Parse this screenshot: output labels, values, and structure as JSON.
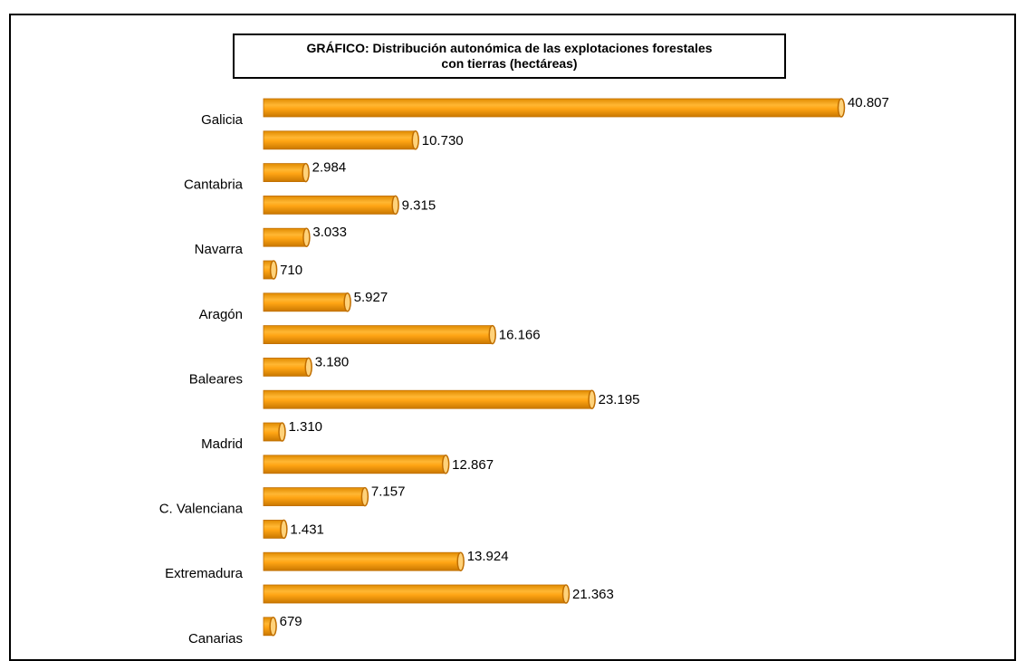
{
  "chart_data": {
    "type": "bar",
    "orientation": "horizontal",
    "title_line1": "GRÁFICO: Distribución autonómica de las explotaciones forestales",
    "title_line2": "con tierras (hectáreas)",
    "categories": [
      "Galicia",
      "",
      "Cantabria",
      "",
      "Navarra",
      "",
      "Aragón",
      "",
      "Baleares",
      "",
      "Madrid",
      "",
      "C. Valenciana",
      "",
      "Extremadura",
      "",
      "Canarias"
    ],
    "values": [
      40807,
      10730,
      2984,
      9315,
      3033,
      710,
      5927,
      16166,
      3180,
      23195,
      1310,
      12867,
      7157,
      1431,
      13924,
      21363,
      679
    ],
    "value_labels": [
      "40.807",
      "10.730",
      "2.984",
      "9.315",
      "3.033",
      "710",
      "5.927",
      "16.166",
      "3.180",
      "23.195",
      "1.310",
      "12.867",
      "7.157",
      "1.431",
      "13.924",
      "21.363",
      "679"
    ],
    "xlim": [
      0,
      41000
    ],
    "grid": false,
    "bar_color": "#F29A00",
    "bar_edge_color": "#C06E00",
    "bar_highlight_color": "#FFD27A"
  }
}
